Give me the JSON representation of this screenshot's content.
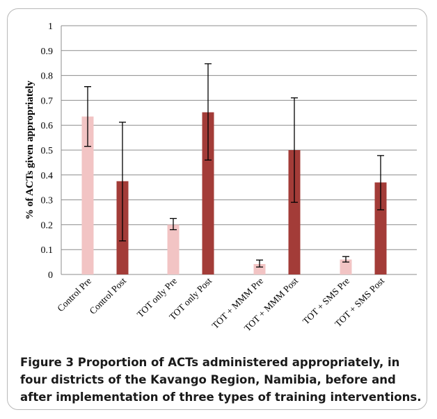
{
  "chart_data": {
    "type": "bar",
    "ylabel": "% of ACTs given appropriately",
    "ylim": [
      0,
      1
    ],
    "yticks": [
      "0",
      "0.1",
      "0.2",
      "0.3",
      "0.4",
      "0.5",
      "0.6",
      "0.7",
      "0.8",
      "0.9",
      "1"
    ],
    "grid": true,
    "categories": [
      "Control Pre",
      "Control Post",
      "TOT only Pre",
      "TOT only Post",
      "TOT + MMM Pre",
      "TOT + MMM Post",
      "TOT + SMS  Pre",
      "TOT + SMS  Post"
    ],
    "values": [
      0.635,
      0.375,
      0.2,
      0.652,
      0.042,
      0.5,
      0.06,
      0.37
    ],
    "error_low": [
      0.515,
      0.135,
      0.18,
      0.46,
      0.03,
      0.29,
      0.05,
      0.26
    ],
    "error_high": [
      0.755,
      0.612,
      0.225,
      0.847,
      0.058,
      0.71,
      0.072,
      0.478
    ],
    "bar_colors": [
      "#f2c4c4",
      "#a33c38",
      "#f2c4c4",
      "#a33c38",
      "#f2c4c4",
      "#a33c38",
      "#f2c4c4",
      "#a33c38"
    ]
  },
  "caption": {
    "label": "Figure 3",
    "text": "Proportion of ACTs administered appropriately, in four districts of the Kavango Region, Namibia, before and after implementation of three types of training interventions."
  }
}
